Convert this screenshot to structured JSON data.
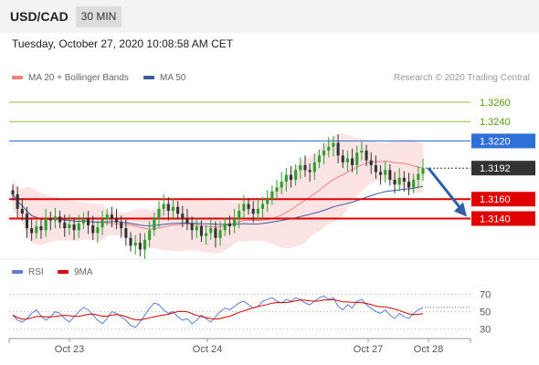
{
  "header": {
    "symbol": "USD/CAD",
    "timeframe": "30 MIN"
  },
  "datetime": "Tuesday, October 27, 2020 10:08:58 AM CET",
  "legend": {
    "ma20": "MA 20 + Bollinger Bands",
    "ma50": "MA 50"
  },
  "credit": "Research © 2020 Trading Central",
  "rsi_legend": {
    "rsi": "RSI",
    "ma9": "9MA"
  },
  "colors": {
    "resistance": "#8cc63f",
    "pivot": "#2e6fd8",
    "support": "#e00000",
    "price": "#333333",
    "ma20": "#f08080",
    "ma50": "#3a5ba0",
    "band": "#fde4e4"
  },
  "chart_data": {
    "type": "candlestick",
    "ylim": [
      1.31,
      1.3275
    ],
    "levels": [
      {
        "label": "1.3260",
        "value": 1.326,
        "kind": "resistance"
      },
      {
        "label": "1.3240",
        "value": 1.324,
        "kind": "resistance"
      },
      {
        "label": "1.3220",
        "value": 1.322,
        "kind": "pivot"
      },
      {
        "label": "1.3192",
        "value": 1.3192,
        "kind": "price"
      },
      {
        "label": "1.3160",
        "value": 1.316,
        "kind": "support"
      },
      {
        "label": "1.3140",
        "value": 1.314,
        "kind": "support"
      }
    ],
    "x_ticks": [
      "Oct 23",
      "Oct 24",
      "Oct 27",
      "Oct 28"
    ],
    "close": [
      1.3165,
      1.315,
      1.3145,
      1.313,
      1.3125,
      1.3132,
      1.3128,
      1.314,
      1.3138,
      1.3142,
      1.3136,
      1.313,
      1.3134,
      1.3128,
      1.3135,
      1.314,
      1.3133,
      1.3125,
      1.3131,
      1.3139,
      1.3144,
      1.314,
      1.3136,
      1.313,
      1.312,
      1.3112,
      1.3115,
      1.3108,
      1.3118,
      1.3128,
      1.314,
      1.315,
      1.3155,
      1.3148,
      1.3152,
      1.3145,
      1.314,
      1.3135,
      1.3128,
      1.3132,
      1.3122,
      1.3125,
      1.313,
      1.312,
      1.3128,
      1.3135,
      1.3132,
      1.314,
      1.3148,
      1.3155,
      1.315,
      1.3145,
      1.315,
      1.3155,
      1.316,
      1.3168,
      1.3172,
      1.3178,
      1.3185,
      1.318,
      1.319,
      1.3195,
      1.319,
      1.3188,
      1.3198,
      1.3205,
      1.321,
      1.3214,
      1.3218,
      1.3205,
      1.3198,
      1.3202,
      1.3195,
      1.3208,
      1.321,
      1.32,
      1.3195,
      1.3188,
      1.3185,
      1.319,
      1.318,
      1.3175,
      1.3182,
      1.3178,
      1.3172,
      1.318,
      1.3186,
      1.3192
    ],
    "rsi": [
      46,
      40,
      38,
      42,
      48,
      52,
      45,
      40,
      44,
      50,
      48,
      42,
      38,
      44,
      50,
      55,
      52,
      46,
      40,
      36,
      42,
      50,
      48,
      44,
      40,
      34,
      32,
      38,
      46,
      54,
      60,
      58,
      52,
      48,
      50,
      44,
      40,
      42,
      36,
      40,
      46,
      42,
      38,
      44,
      50,
      54,
      52,
      56,
      60,
      62,
      58,
      54,
      56,
      62,
      64,
      66,
      62,
      60,
      64,
      62,
      66,
      64,
      60,
      58,
      62,
      66,
      68,
      64,
      66,
      56,
      52,
      58,
      54,
      62,
      64,
      58,
      54,
      50,
      48,
      52,
      46,
      42,
      48,
      44,
      42,
      48,
      52,
      55
    ],
    "rsi_levels": [
      70,
      50,
      30
    ]
  }
}
